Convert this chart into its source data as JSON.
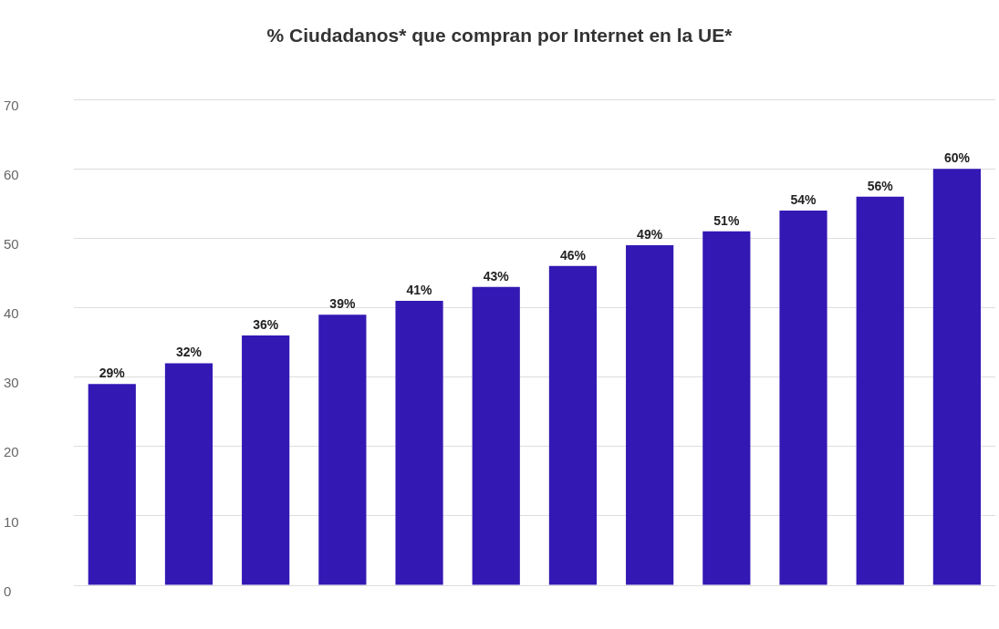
{
  "chart_data": {
    "type": "bar",
    "title": "% Ciudadanos* que compran por Internet en la UE*",
    "categories": [
      null,
      null,
      null,
      null,
      null,
      null,
      null,
      null,
      null,
      null,
      null,
      null
    ],
    "values": [
      29,
      32,
      36,
      39,
      41,
      43,
      46,
      49,
      51,
      54,
      56,
      60
    ],
    "value_labels": [
      "29%",
      "32%",
      "36%",
      "39%",
      "41%",
      "43%",
      "46%",
      "49%",
      "51%",
      "54%",
      "56%",
      "60%"
    ],
    "color": "#3418b4",
    "ylim": [
      0,
      70
    ],
    "yticks": [
      0,
      10,
      20,
      30,
      40,
      50,
      60,
      70
    ],
    "grid": "y",
    "legend": false
  }
}
